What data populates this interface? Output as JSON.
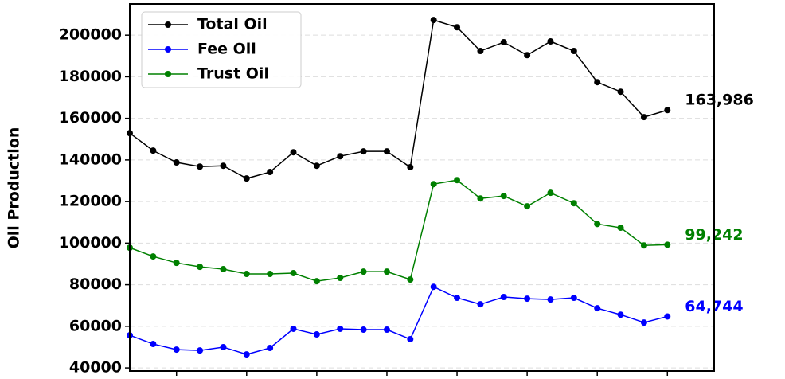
{
  "chart_data": {
    "type": "line",
    "ylabel": "Oil Production",
    "x": [
      0,
      1,
      2,
      3,
      4,
      5,
      6,
      7,
      8,
      9,
      10,
      11,
      12,
      13,
      14,
      15,
      16,
      17,
      18,
      19,
      20,
      21,
      22,
      23
    ],
    "xlim": [
      0,
      25
    ],
    "xticks": [
      2,
      5,
      8,
      11,
      14,
      17,
      20,
      23
    ],
    "ylim": [
      38500,
      215000
    ],
    "yticks": [
      40000,
      60000,
      80000,
      100000,
      120000,
      140000,
      160000,
      180000,
      200000
    ],
    "grid": true,
    "legend": "upper left",
    "series": [
      {
        "name": "Total Oil",
        "color": "#000000",
        "values": [
          152900,
          144500,
          138800,
          136800,
          137200,
          131100,
          134200,
          143700,
          137200,
          141800,
          144100,
          144100,
          136500,
          207300,
          203800,
          192400,
          196600,
          190400,
          197000,
          192400,
          177400,
          172800,
          160600,
          163986
        ],
        "value_labels": [
          null,
          null,
          null,
          null,
          null,
          null,
          null,
          null,
          null,
          null,
          null,
          null,
          null,
          null,
          null,
          null,
          null,
          null,
          null,
          null,
          null,
          null,
          null,
          "163,986"
        ]
      },
      {
        "name": "Fee Oil",
        "color": "#0000ff",
        "values": [
          55700,
          51500,
          48800,
          48400,
          50000,
          46500,
          49600,
          58800,
          56100,
          58800,
          58400,
          58400,
          53800,
          79000,
          73700,
          70600,
          74100,
          73300,
          72900,
          73700,
          68700,
          65600,
          61800,
          64744
        ],
        "value_labels": [
          null,
          null,
          null,
          null,
          null,
          null,
          null,
          null,
          null,
          null,
          null,
          null,
          null,
          null,
          null,
          null,
          null,
          null,
          null,
          null,
          null,
          null,
          null,
          "64,744"
        ]
      },
      {
        "name": "Trust Oil",
        "color": "#008000",
        "values": [
          97800,
          93600,
          90500,
          88600,
          87500,
          85200,
          85200,
          85600,
          81700,
          83300,
          86300,
          86300,
          82500,
          128400,
          130300,
          121500,
          122700,
          117700,
          124200,
          119200,
          109200,
          107400,
          98900,
          99242
        ],
        "value_labels": [
          null,
          null,
          null,
          null,
          null,
          null,
          null,
          null,
          null,
          null,
          null,
          null,
          null,
          null,
          null,
          null,
          null,
          null,
          null,
          null,
          null,
          null,
          null,
          "99,242"
        ]
      }
    ]
  }
}
